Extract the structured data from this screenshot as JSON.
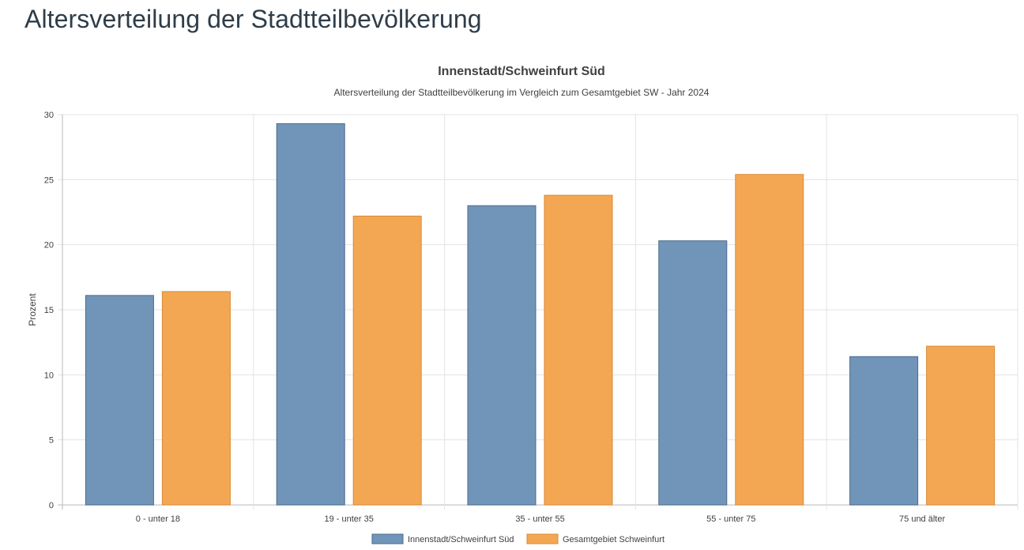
{
  "page": {
    "heading": "Altersverteilung der Stadtteilbevölkerung"
  },
  "chart_data": {
    "type": "bar",
    "title": "Innenstadt/Schweinfurt Süd",
    "subtitle": "Altersverteilung der Stadtteilbevölkerung im Vergleich zum Gesamtgebiet SW - Jahr 2024",
    "xlabel": "",
    "ylabel": "Prozent",
    "ylim": [
      0,
      30
    ],
    "yticks": [
      "0",
      "5",
      "10",
      "15",
      "20",
      "25",
      "30"
    ],
    "grid": true,
    "legend_position": "bottom",
    "categories": [
      "0 - unter 18",
      "19 - unter 35",
      "35 - unter 55",
      "55 - unter 75",
      "75 und älter"
    ],
    "series": [
      {
        "name": "Innenstadt/Schweinfurt Süd",
        "values": [
          16.1,
          29.3,
          23.0,
          20.3,
          11.4
        ],
        "color": "#7195b8",
        "border_color": "#4a6a8c"
      },
      {
        "name": "Gesamtgebiet Schweinfurt",
        "values": [
          16.4,
          22.2,
          23.8,
          25.4,
          12.2
        ],
        "color": "#f4a753",
        "border_color": "#d98a36"
      }
    ]
  }
}
